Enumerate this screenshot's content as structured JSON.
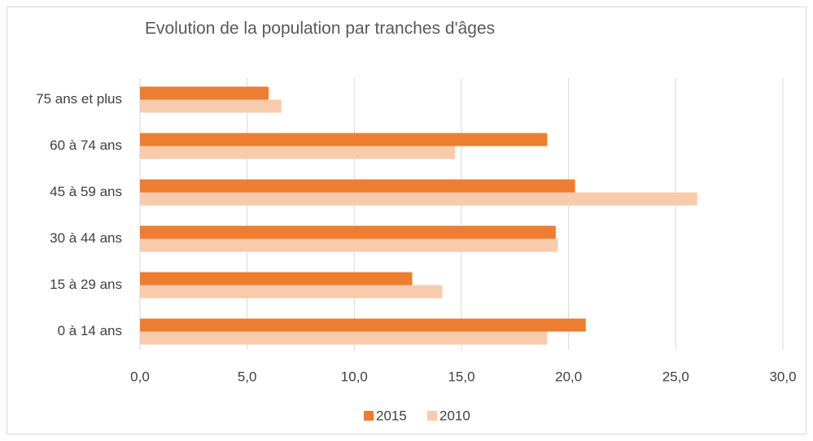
{
  "chart_data": {
    "type": "barh",
    "title": "Evolution de la population par tranches d'âges",
    "categories": [
      "75 ans et plus",
      "60 à 74 ans",
      "45 à 59 ans",
      "30 à 44 ans",
      "15 à 29 ans",
      "0 à 14 ans"
    ],
    "series": [
      {
        "name": "2015",
        "color": "#ED7D31",
        "values": [
          6.0,
          19.0,
          20.3,
          19.4,
          12.7,
          20.8
        ]
      },
      {
        "name": "2010",
        "color": "#F8CBAD",
        "values": [
          6.6,
          14.7,
          26.0,
          19.5,
          14.1,
          19.0
        ]
      }
    ],
    "xlim": [
      0,
      30
    ],
    "xticks": [
      {
        "value": 0,
        "label": "0,0"
      },
      {
        "value": 5,
        "label": "5,0"
      },
      {
        "value": 10,
        "label": "10,0"
      },
      {
        "value": 15,
        "label": "15,0"
      },
      {
        "value": 20,
        "label": "20,0"
      },
      {
        "value": 25,
        "label": "25,0"
      },
      {
        "value": 30,
        "label": "30,0"
      }
    ],
    "grid": true,
    "legend": "bottom"
  }
}
